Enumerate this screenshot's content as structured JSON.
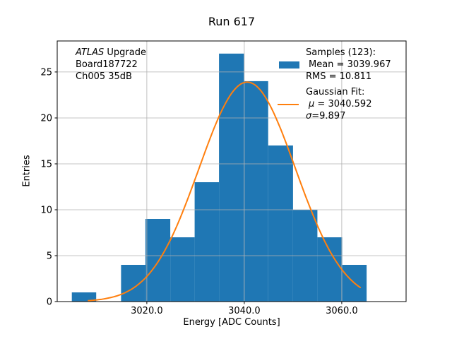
{
  "title": "Run 617",
  "annotation": {
    "atlas": "ATLAS",
    "upgrade": " Upgrade",
    "line2": "Board187722",
    "line3": "Ch005 35dB"
  },
  "legend": {
    "samples_header": "Samples (123):",
    "hist_label_line1": "Mean = 3039.967",
    "hist_label_line2": "RMS = 10.811",
    "fit_header": "Gaussian Fit:",
    "mu_symbol": "μ",
    "mu_value": " = 3040.592",
    "sigma_symbol": "σ",
    "sigma_value": "=9.897"
  },
  "axes": {
    "xlabel": "Energy [ADC Counts]",
    "ylabel": "Entries",
    "xtick_labels": [
      "3020.0",
      "3040.0",
      "3060.0"
    ],
    "ytick_labels": [
      "0",
      "5",
      "10",
      "15",
      "20",
      "25"
    ]
  },
  "chart_data": {
    "type": "bar",
    "subtype": "histogram-with-gaussian-fit",
    "title": "Run 617",
    "xlabel": "Energy [ADC Counts]",
    "ylabel": "Entries",
    "n_samples": 123,
    "mean": 3039.967,
    "rms": 10.811,
    "bin_edges": [
      3004.6,
      3009.6,
      3014.7,
      3019.7,
      3024.8,
      3029.8,
      3034.8,
      3039.9,
      3044.9,
      3050.0,
      3055.0,
      3060.1,
      3065.1
    ],
    "counts": [
      1,
      0,
      4,
      9,
      7,
      13,
      27,
      24,
      17,
      10,
      7,
      4
    ],
    "fit": {
      "type": "gaussian",
      "mu": 3040.592,
      "sigma": 9.897,
      "amplitude": 23.9,
      "x_start": 3008.0,
      "x_end": 3063.8
    },
    "xlim": [
      3001.6,
      3073.2
    ],
    "ylim": [
      0,
      28.38
    ],
    "xticks": [
      3020.0,
      3040.0,
      3060.0
    ],
    "yticks": [
      0,
      5,
      10,
      15,
      20,
      25
    ],
    "grid": true,
    "legend_position": "upper right",
    "colors": {
      "hist": "#1f77b4",
      "fit": "#ff7f0e",
      "grid": "#b0b0b0",
      "axis": "#000000"
    }
  }
}
